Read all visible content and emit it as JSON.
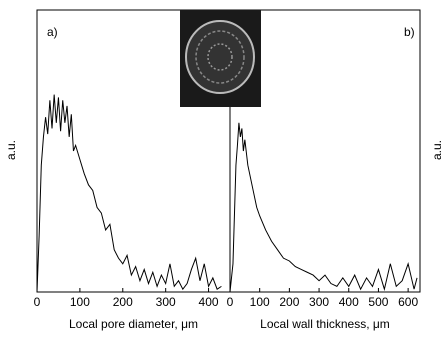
{
  "chart_data": [
    {
      "type": "line",
      "panel_label": "a)",
      "ylabel": "a.u.",
      "xlabel": "Local pore diameter, μm",
      "xlim": [
        0,
        450
      ],
      "xticks": [
        0,
        100,
        200,
        300,
        400
      ],
      "ylim": [
        0,
        1
      ],
      "x": [
        0,
        5,
        10,
        15,
        20,
        25,
        30,
        35,
        40,
        45,
        50,
        55,
        60,
        65,
        70,
        75,
        80,
        85,
        90,
        100,
        110,
        120,
        130,
        140,
        150,
        160,
        170,
        180,
        190,
        200,
        210,
        220,
        230,
        240,
        250,
        260,
        270,
        280,
        290,
        300,
        310,
        320,
        330,
        340,
        350,
        360,
        370,
        380,
        390,
        400,
        410,
        420,
        430
      ],
      "series": [
        {
          "color": "#000000",
          "values": [
            0,
            0.2,
            0.45,
            0.55,
            0.62,
            0.56,
            0.68,
            0.58,
            0.7,
            0.6,
            0.69,
            0.57,
            0.68,
            0.6,
            0.66,
            0.55,
            0.63,
            0.5,
            0.52,
            0.47,
            0.42,
            0.38,
            0.36,
            0.3,
            0.28,
            0.22,
            0.24,
            0.15,
            0.12,
            0.1,
            0.13,
            0.06,
            0.09,
            0.04,
            0.08,
            0.03,
            0.07,
            0.02,
            0.06,
            0.03,
            0.1,
            0.02,
            0.04,
            0.01,
            0.03,
            0.08,
            0.12,
            0.04,
            0.1,
            0.02,
            0.05,
            0.01,
            0.02
          ]
        }
      ]
    },
    {
      "type": "line",
      "panel_label": "b)",
      "ylabel": "a.u.",
      "xlabel": "Local wall thickness, μm",
      "xlim": [
        0,
        640
      ],
      "xticks": [
        0,
        100,
        200,
        300,
        400,
        500,
        600
      ],
      "ylim": [
        0,
        1
      ],
      "x": [
        0,
        10,
        20,
        25,
        30,
        35,
        40,
        45,
        50,
        60,
        70,
        80,
        90,
        100,
        120,
        140,
        160,
        180,
        200,
        220,
        240,
        260,
        280,
        300,
        320,
        340,
        360,
        380,
        400,
        420,
        440,
        460,
        480,
        500,
        520,
        540,
        560,
        580,
        600,
        620,
        630
      ],
      "series": [
        {
          "color": "#000000",
          "values": [
            0,
            0.1,
            0.45,
            0.52,
            0.6,
            0.55,
            0.58,
            0.5,
            0.54,
            0.45,
            0.4,
            0.35,
            0.3,
            0.27,
            0.22,
            0.18,
            0.15,
            0.12,
            0.11,
            0.09,
            0.08,
            0.07,
            0.06,
            0.04,
            0.06,
            0.03,
            0.02,
            0.05,
            0.02,
            0.06,
            0.01,
            0.05,
            0.02,
            0.08,
            0.01,
            0.1,
            0.02,
            0.04,
            0.1,
            0.01,
            0.05
          ]
        }
      ]
    }
  ]
}
